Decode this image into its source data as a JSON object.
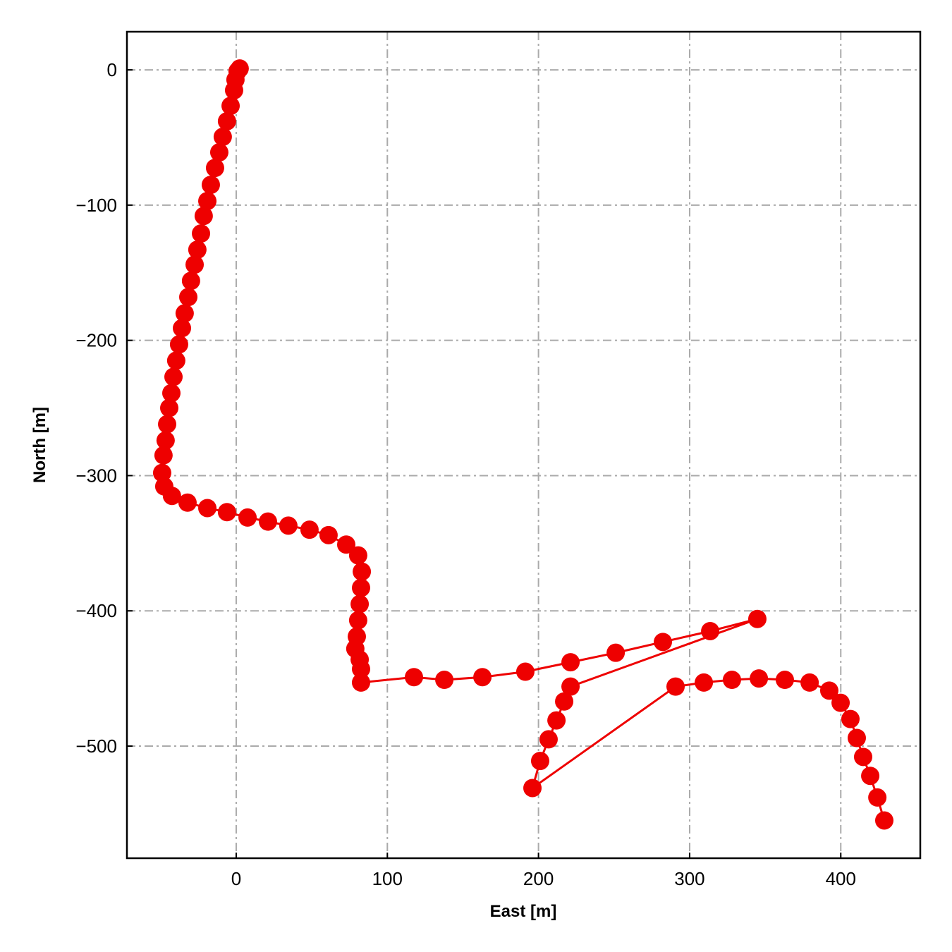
{
  "chart_data": {
    "type": "line",
    "xlabel": "East [m]",
    "ylabel": "North [m]",
    "color": "#ee0000",
    "grid": true,
    "xlim": [
      -72.3,
      452.6
    ],
    "ylim": [
      -582.9,
      28.2
    ],
    "xticks": [
      0,
      100,
      200,
      300,
      400
    ],
    "yticks": [
      {
        "value": -500,
        "label": "−500"
      },
      {
        "value": -400,
        "label": "−400"
      },
      {
        "value": -300,
        "label": "−300"
      },
      {
        "value": -200,
        "label": "−200"
      },
      {
        "value": -100,
        "label": "−100"
      },
      0
    ],
    "x": [
      2.3,
      0.9,
      -0.5,
      -1.4,
      -3.7,
      -6.1,
      -8.9,
      -11.2,
      -14,
      -16.8,
      -19.1,
      -21.5,
      -23.3,
      -25.7,
      -27.5,
      -29.9,
      -31.7,
      -34.1,
      -35.9,
      -37.8,
      -39.7,
      -41.5,
      -42.9,
      -44.3,
      -45.7,
      -46.7,
      -48.1,
      -49,
      -47.6,
      -42.5,
      -32.2,
      -19.1,
      -6.1,
      7.5,
      21,
      34.5,
      48.5,
      61.1,
      72.8,
      80.7,
      83.1,
      82.6,
      81.7,
      80.7,
      79.8,
      78.8,
      81.7,
      82.6,
      82.6,
      117.6,
      137.7,
      162.9,
      191.3,
      221.2,
      251.1,
      282.3,
      313.6,
      344.8,
      221.2,
      217,
      211.9,
      206.7,
      201.1,
      196,
      290.7,
      309.4,
      328,
      345.8,
      363,
      379.4,
      392.4,
      399.9,
      406.4,
      410.6,
      414.8,
      419.5,
      424.2,
      428.8
    ],
    "values": [
      1,
      -1,
      -7.3,
      -15.1,
      -26.6,
      -38,
      -49.5,
      -61,
      -72.5,
      -85,
      -97,
      -108,
      -121,
      -133,
      -144,
      -156,
      -168,
      -180,
      -191,
      -203,
      -215,
      -227,
      -239,
      -250,
      -262,
      -274,
      -285,
      -298,
      -308,
      -315,
      -320,
      -324,
      -327,
      -331,
      -334,
      -337,
      -340,
      -344,
      -351,
      -359,
      -371,
      -383,
      -395,
      -407,
      -419,
      -428,
      -436,
      -443,
      -453,
      -449,
      -451,
      -449,
      -445,
      -438,
      -431,
      -423,
      -415,
      -406,
      -456,
      -467,
      -481,
      -495,
      -511,
      -531,
      -456,
      -453,
      -451,
      -450,
      -451,
      -453,
      -459,
      -468,
      -480,
      -494,
      -508,
      -522,
      -538,
      -555
    ]
  }
}
